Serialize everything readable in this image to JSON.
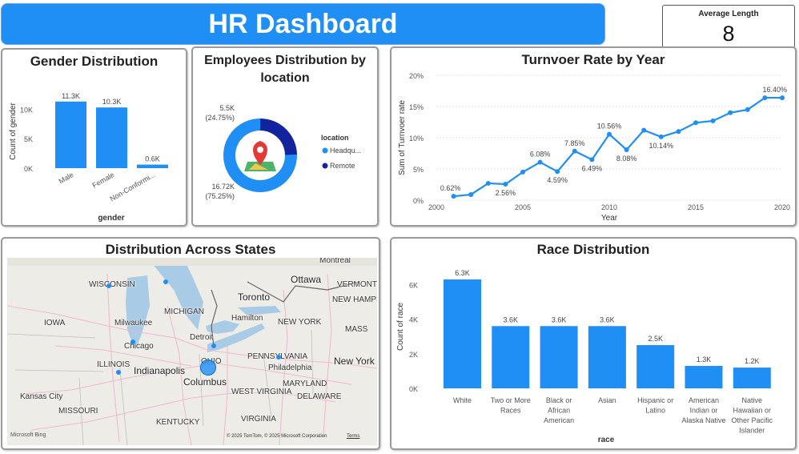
{
  "header": {
    "title": "HR Dashboard"
  },
  "kpi": {
    "label": "Average Length",
    "value": "8"
  },
  "colors": {
    "accent": "#1f8ef5",
    "dark": "#12239e",
    "panel_border": "#9a9a9a"
  },
  "gender": {
    "title": "Gender Distribution",
    "chart_data": {
      "type": "bar",
      "categories": [
        "Male",
        "Female",
        "Non-Conformi..."
      ],
      "values": [
        11.3,
        10.3,
        0.6
      ],
      "data_labels": [
        "11.3K",
        "10.3K",
        "0.6K"
      ],
      "xlabel": "gender",
      "ylabel": "Count of gender",
      "yticks": [
        "0K",
        "5K",
        "10K"
      ],
      "ylim": [
        0,
        12.5
      ]
    }
  },
  "location": {
    "title": "Employees Distribution by location",
    "chart_data": {
      "type": "pie",
      "slices": [
        {
          "name": "Headqu...",
          "value": 16.72,
          "label": "16.72K",
          "pct": "(75.25%)"
        },
        {
          "name": "Remote",
          "value": 5.5,
          "label": "5.5K",
          "pct": "(24.75%)"
        }
      ]
    },
    "legend_title": "location",
    "legend": [
      "Headqu...",
      "Remote"
    ]
  },
  "turnover": {
    "title": "Turnvoer Rate by Year",
    "chart_data": {
      "type": "line",
      "x": [
        2001,
        2002,
        2003,
        2004,
        2005,
        2006,
        2007,
        2008,
        2009,
        2010,
        2011,
        2012,
        2013,
        2014,
        2015,
        2016,
        2017,
        2018,
        2019,
        2020
      ],
      "values": [
        0.62,
        0.9,
        2.7,
        2.56,
        4.5,
        6.08,
        4.59,
        7.85,
        6.49,
        10.56,
        8.08,
        11.2,
        10.14,
        11.0,
        12.4,
        12.7,
        14.0,
        14.5,
        16.4,
        16.4
      ],
      "data_labels": [
        {
          "x": 2001,
          "text": "0.62%"
        },
        {
          "x": 2004,
          "text": "2.56%"
        },
        {
          "x": 2006,
          "text": "6.08%"
        },
        {
          "x": 2007,
          "text": "4.59%"
        },
        {
          "x": 2008,
          "text": "7.85%"
        },
        {
          "x": 2009,
          "text": "6.49%"
        },
        {
          "x": 2010,
          "text": "10.56%"
        },
        {
          "x": 2011,
          "text": "8.08%"
        },
        {
          "x": 2013,
          "text": "10.14%"
        },
        {
          "x": 2020,
          "text": "16.40%"
        }
      ],
      "xlabel": "Year",
      "ylabel": "Sum of Turnvoer rate",
      "xticks": [
        "2000",
        "2005",
        "2010",
        "2015",
        "2020"
      ],
      "yticks": [
        "0%",
        "5%",
        "10%",
        "15%",
        "20%"
      ],
      "xlim": [
        2000,
        2020
      ],
      "ylim": [
        0,
        20
      ]
    }
  },
  "map": {
    "title": "Distribution Across States",
    "labels": [
      "Montreal",
      "Ottawa",
      "VERMONT",
      "NEW HAMPS",
      "WISCONSIN",
      "MICHIGAN",
      "Toronto",
      "Hamilton",
      "NEW YORK",
      "MASS",
      "IOWA",
      "Milwaukee",
      "Detroit",
      "Chicago",
      "PENNSYLVANIA",
      "ILLINOIS",
      "Indianapolis",
      "OHIO",
      "Philadelphia",
      "New York",
      "Columbus",
      "Kansas City",
      "MISSOURI",
      "WEST VIRGINIA",
      "MARYLAND",
      "DELAWARE",
      "KENTUCKY",
      "VIRGINIA"
    ],
    "attribution": "© 2025 TomTom, © 2025 Microsoft Corporation",
    "terms": "Terms",
    "bing": "Microsoft Bing"
  },
  "race": {
    "title": "Race Distribution",
    "chart_data": {
      "type": "bar",
      "categories": [
        "White",
        "Two or More Races",
        "Black or African American",
        "Asian",
        "Hispanic or Latino",
        "American Indian or Alaska Native",
        "Native Hawaiian or Other Pacific Islander"
      ],
      "category_lines": [
        [
          "White"
        ],
        [
          "Two or More",
          "Races"
        ],
        [
          "Black or",
          "African",
          "American"
        ],
        [
          "Asian"
        ],
        [
          "Hispanic or",
          "Latino"
        ],
        [
          "American",
          "Indian or",
          "Alaska Native"
        ],
        [
          "Native",
          "Hawaiian or",
          "Other Pacific",
          "Islander"
        ]
      ],
      "values": [
        6.3,
        3.6,
        3.6,
        3.6,
        2.5,
        1.3,
        1.2
      ],
      "data_labels": [
        "6.3K",
        "3.6K",
        "3.6K",
        "3.6K",
        "2.5K",
        "1.3K",
        "1.2K"
      ],
      "xlabel": "race",
      "ylabel": "Count of race",
      "yticks": [
        "0K",
        "2K",
        "4K",
        "6K"
      ],
      "ylim": [
        0,
        6.9
      ]
    }
  }
}
